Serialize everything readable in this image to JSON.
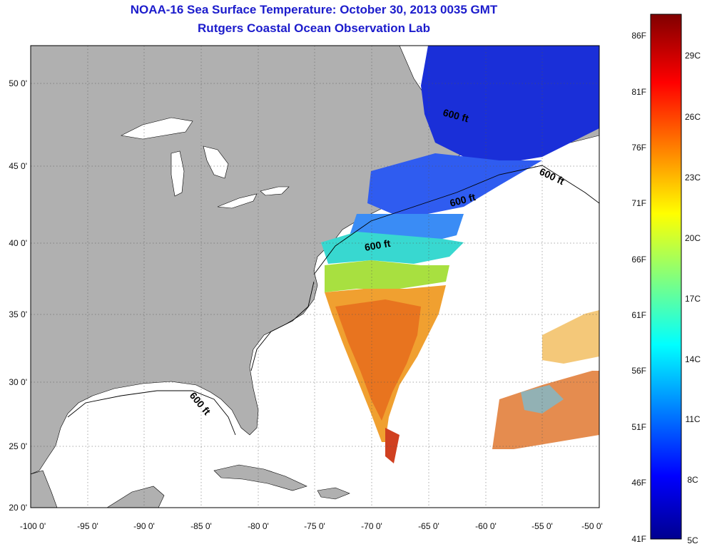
{
  "header": {
    "title": "NOAA-16 Sea Surface Temperature:  October 30, 2013 0035 GMT",
    "subtitle": "Rutgers Coastal Ocean Observation Lab"
  },
  "map": {
    "lat_range": [
      20,
      52.5
    ],
    "lon_range": [
      -100,
      -50
    ],
    "lat_ticks": [
      "50 0'",
      "45 0'",
      "40 0'",
      "35 0'",
      "30 0'",
      "25 0'",
      "20 0'"
    ],
    "lon_ticks": [
      "-100 0'",
      "-95 0'",
      "-90 0'",
      "-85 0'",
      "-80 0'",
      "-75 0'",
      "-70 0'",
      "-65 0'",
      "-60 0'",
      "-55 0'",
      "-50 0'"
    ],
    "depth_labels": [
      "600 ft",
      "600 ft",
      "600 ft",
      "600 ft",
      "600 ft"
    ],
    "land_color": "#b0b0b0",
    "ocean_color": "#ffffff",
    "gridlines": "dotted"
  },
  "colorbar": {
    "fahrenheit_labels": [
      "86F",
      "81F",
      "76F",
      "71F",
      "66F",
      "61F",
      "56F",
      "51F",
      "46F",
      "41F"
    ],
    "celsius_labels": [
      "29C",
      "26C",
      "23C",
      "20C",
      "17C",
      "14C",
      "11C",
      "8C",
      "5C"
    ],
    "range_c": [
      5,
      31
    ],
    "colormap": "jet"
  }
}
